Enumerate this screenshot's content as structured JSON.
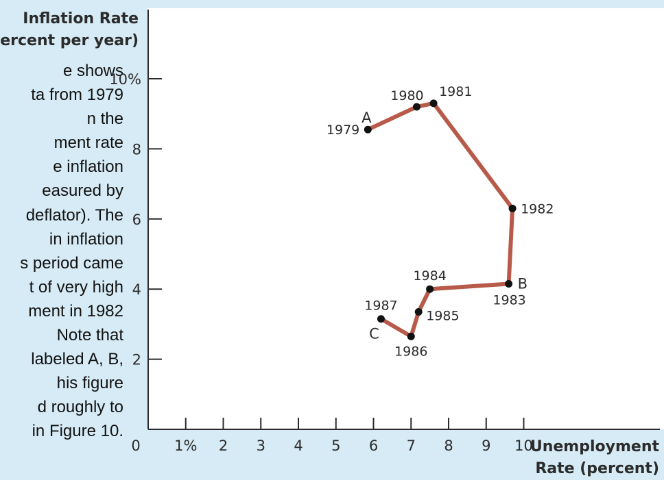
{
  "caption_lines": [
    "e shows",
    "ta from 1979",
    "n the",
    "ment rate",
    "e inflation",
    "easured by",
    "deflator). The",
    "in inflation",
    "s period came",
    "t of very high",
    "ment in 1982",
    "Note that",
    "labeled A, B,",
    "his figure",
    "d roughly to",
    "in Figure 10."
  ],
  "colors": {
    "background": "#d6ebf5",
    "plot_background": "#ffffff",
    "line": "#b85a4a",
    "point": "#111111",
    "axis": "#2b2b2b"
  },
  "chart_data": {
    "type": "line",
    "ylabel_lines": [
      "Inflation Rate",
      "(percent per year)"
    ],
    "xlabel_lines": [
      "Unemployment",
      "Rate (percent)"
    ],
    "xlim": [
      0,
      10
    ],
    "ylim": [
      0,
      10
    ],
    "x_ticks": [
      {
        "v": 0,
        "label": "0"
      },
      {
        "v": 1,
        "label": "1%"
      },
      {
        "v": 2,
        "label": "2"
      },
      {
        "v": 3,
        "label": "3"
      },
      {
        "v": 4,
        "label": "4"
      },
      {
        "v": 5,
        "label": "5"
      },
      {
        "v": 6,
        "label": "6"
      },
      {
        "v": 7,
        "label": "7"
      },
      {
        "v": 8,
        "label": "8"
      },
      {
        "v": 9,
        "label": "9"
      },
      {
        "v": 10,
        "label": "10"
      }
    ],
    "y_ticks": [
      {
        "v": 2,
        "label": "2"
      },
      {
        "v": 4,
        "label": "4"
      },
      {
        "v": 6,
        "label": "6"
      },
      {
        "v": 8,
        "label": "8"
      },
      {
        "v": 10,
        "label": "10%"
      }
    ],
    "grid": false,
    "points": [
      {
        "year": "1979",
        "x": 5.85,
        "y": 8.55,
        "letter": "A"
      },
      {
        "year": "1980",
        "x": 7.15,
        "y": 9.2
      },
      {
        "year": "1981",
        "x": 7.6,
        "y": 9.3
      },
      {
        "year": "1982",
        "x": 9.7,
        "y": 6.3
      },
      {
        "year": "1983",
        "x": 9.6,
        "y": 4.15,
        "letter": "B"
      },
      {
        "year": "1984",
        "x": 7.5,
        "y": 4.0
      },
      {
        "year": "1985",
        "x": 7.2,
        "y": 3.35
      },
      {
        "year": "1986",
        "x": 7.0,
        "y": 2.65
      },
      {
        "year": "1987",
        "x": 6.2,
        "y": 3.15,
        "letter": "C"
      }
    ]
  }
}
